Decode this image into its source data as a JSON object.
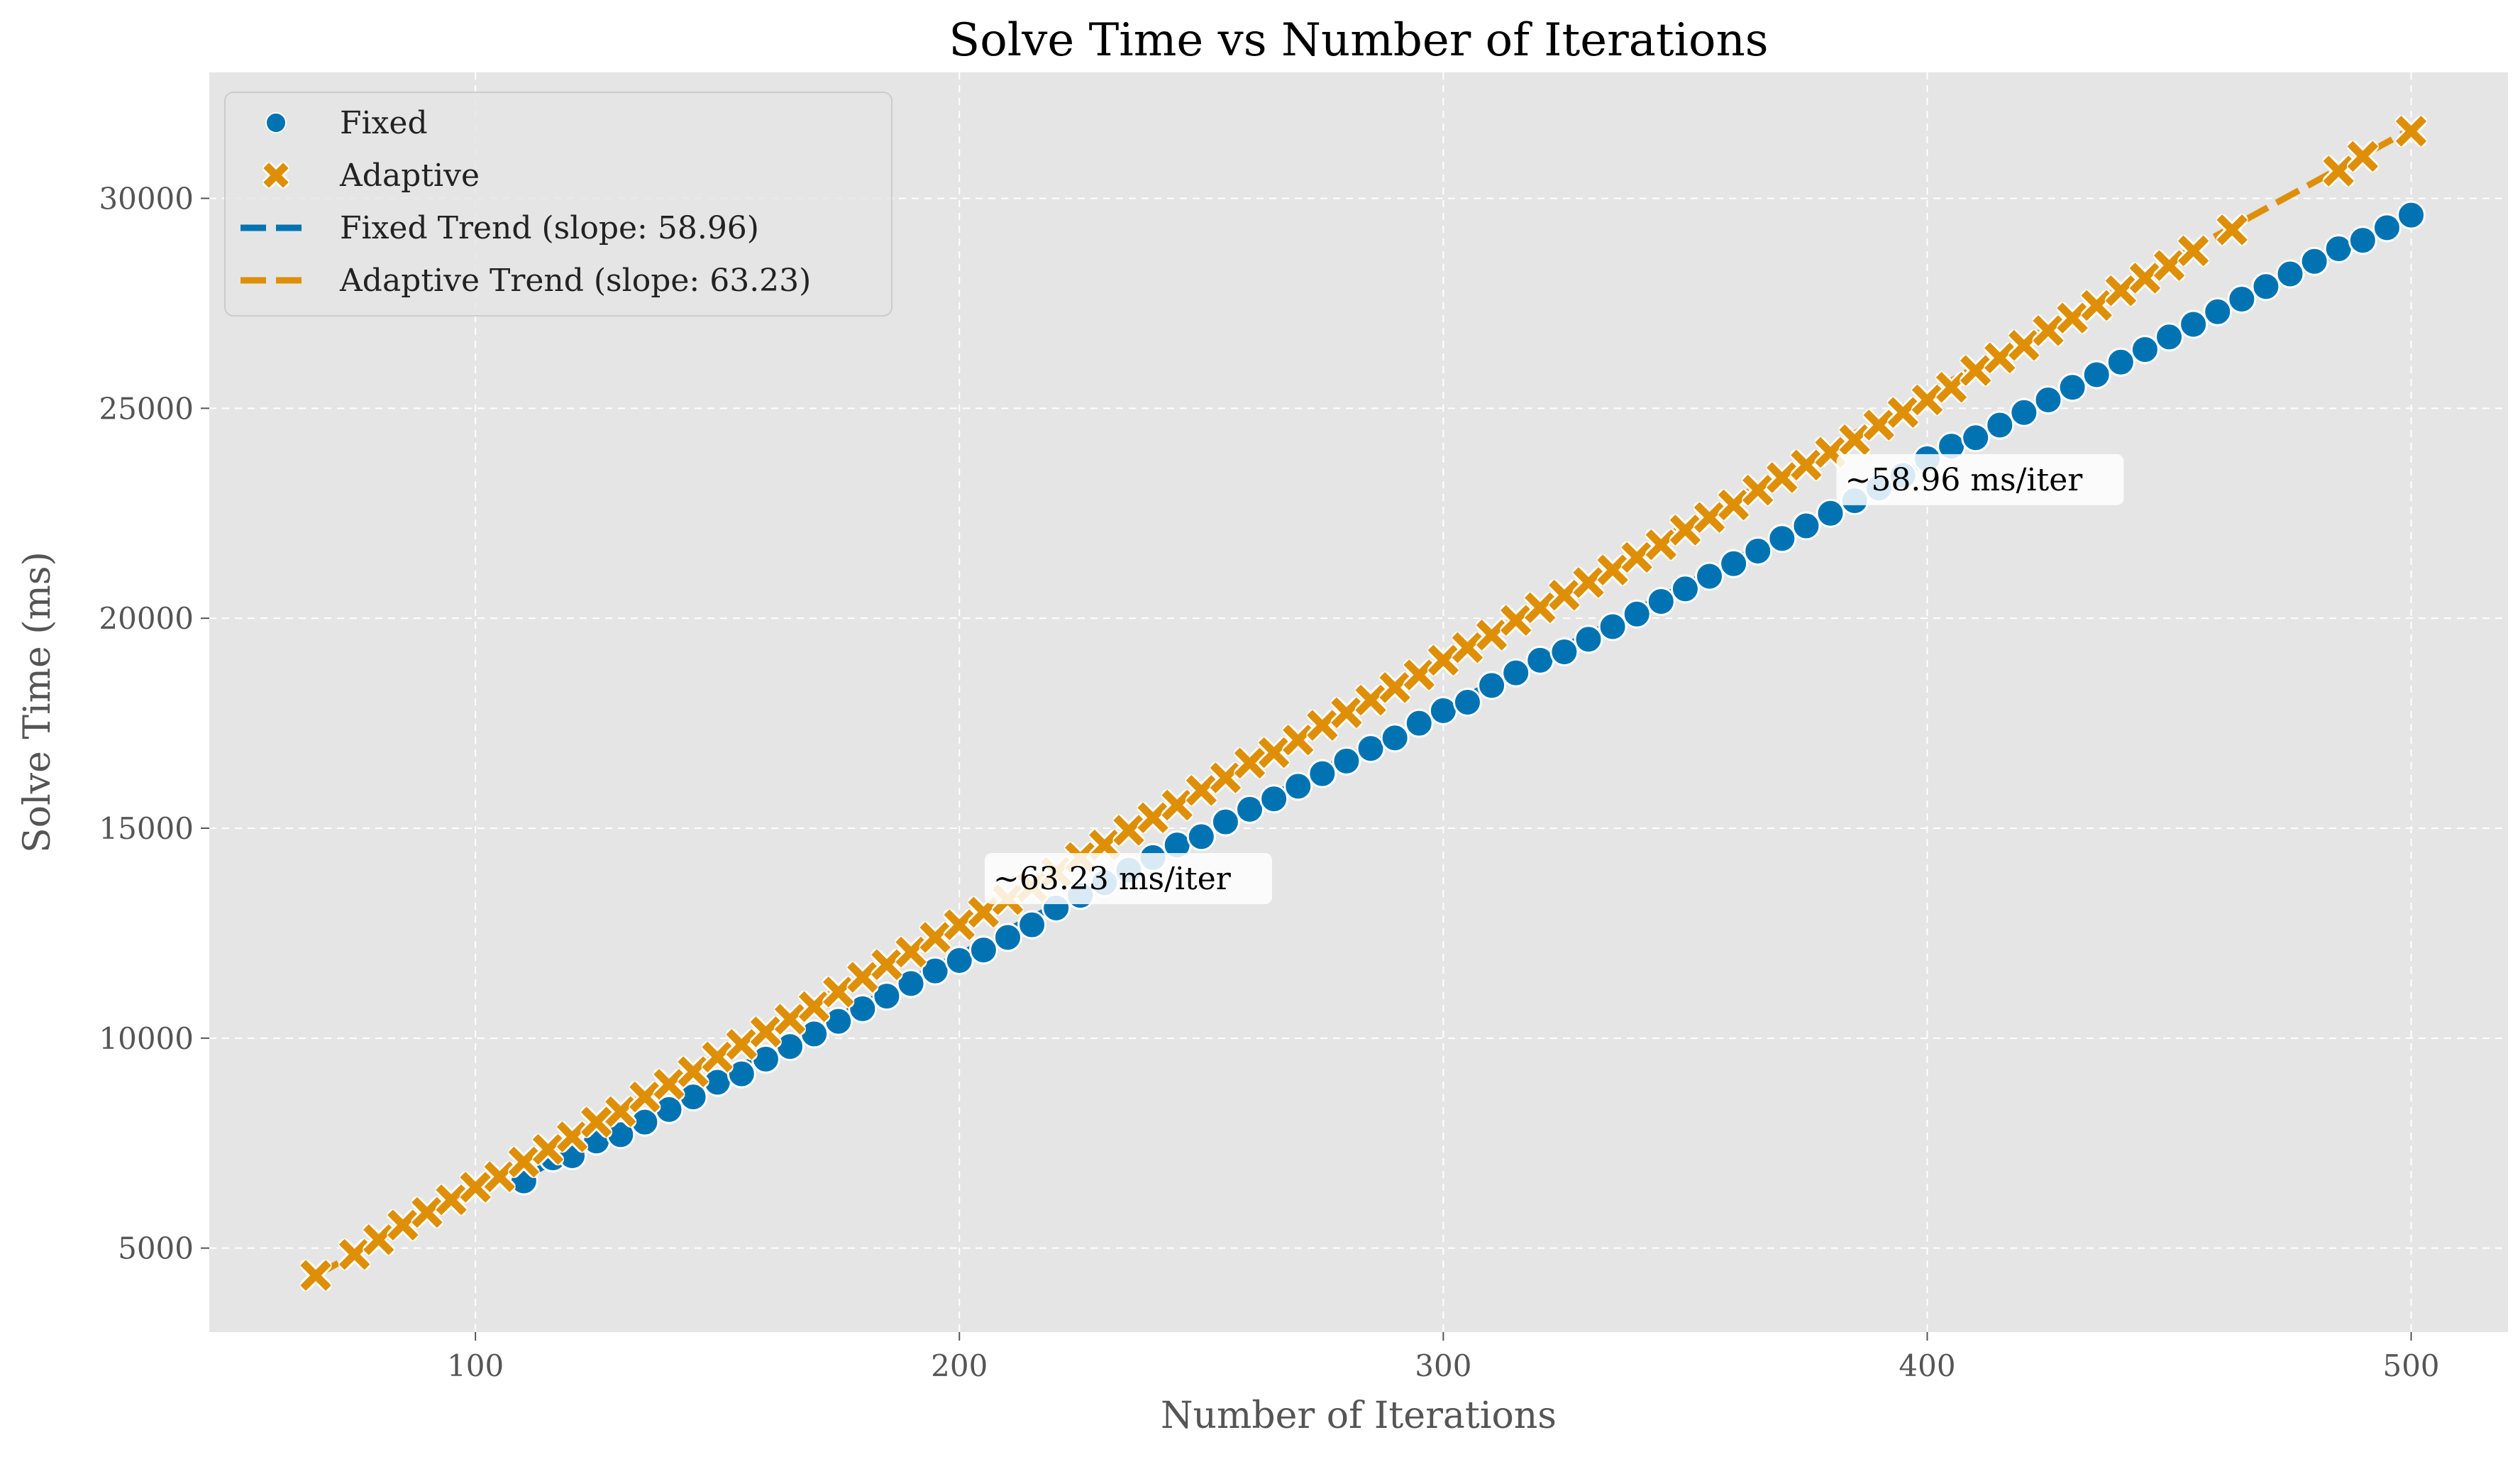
{
  "chart_data": {
    "type": "scatter",
    "title": "Solve Time vs Number of Iterations",
    "xlabel": "Number of Iterations",
    "ylabel": "Solve Time (ms)",
    "xlim": [
      45,
      520
    ],
    "ylim": [
      3000,
      33000
    ],
    "x_ticks": [
      100,
      200,
      300,
      400,
      500
    ],
    "y_ticks": [
      5000,
      10000,
      15000,
      20000,
      25000,
      30000
    ],
    "grid": true,
    "legend_position": "top-left",
    "colors": {
      "fixed": "#0173b2",
      "adaptive": "#de8f05",
      "plot_bg": "#e5e5e5",
      "grid": "#ffffff"
    },
    "series": [
      {
        "name": "Fixed",
        "marker": "circle",
        "x": [
          110,
          116,
          120,
          125,
          130,
          135,
          140,
          145,
          150,
          155,
          160,
          165,
          170,
          175,
          180,
          185,
          190,
          195,
          200,
          205,
          210,
          215,
          220,
          225,
          230,
          235,
          240,
          245,
          250,
          255,
          260,
          265,
          270,
          275,
          280,
          285,
          290,
          295,
          300,
          305,
          310,
          315,
          320,
          325,
          330,
          335,
          340,
          345,
          350,
          355,
          360,
          365,
          370,
          375,
          380,
          385,
          390,
          395,
          400,
          405,
          410,
          415,
          420,
          425,
          430,
          435,
          440,
          445,
          450,
          455,
          460,
          465,
          470,
          475,
          480,
          485,
          490,
          495,
          500
        ],
        "y": [
          6600,
          7150,
          7200,
          7550,
          7700,
          8000,
          8300,
          8600,
          8950,
          9150,
          9500,
          9800,
          10100,
          10400,
          10700,
          11000,
          11300,
          11600,
          11850,
          12100,
          12400,
          12700,
          13100,
          13400,
          13700,
          14000,
          14300,
          14600,
          14800,
          15150,
          15450,
          15700,
          16000,
          16300,
          16600,
          16900,
          17150,
          17500,
          17800,
          18000,
          18400,
          18700,
          19000,
          19200,
          19500,
          19800,
          20100,
          20400,
          20700,
          21000,
          21300,
          21600,
          21900,
          22200,
          22500,
          22800,
          23100,
          23400,
          23800,
          24100,
          24300,
          24600,
          24900,
          25200,
          25500,
          25800,
          26100,
          26400,
          26700,
          27000,
          27300,
          27600,
          27900,
          28200,
          28500,
          28800,
          29000,
          29300,
          29600
        ]
      },
      {
        "name": "Adaptive",
        "marker": "x",
        "x": [
          67,
          75,
          80,
          85,
          90,
          95,
          100,
          105,
          110,
          115,
          120,
          125,
          130,
          135,
          140,
          145,
          150,
          155,
          160,
          165,
          170,
          175,
          180,
          185,
          190,
          195,
          200,
          205,
          210,
          215,
          220,
          225,
          230,
          235,
          240,
          245,
          250,
          255,
          260,
          265,
          270,
          275,
          280,
          285,
          290,
          295,
          300,
          305,
          310,
          315,
          320,
          325,
          330,
          335,
          340,
          345,
          350,
          355,
          360,
          365,
          370,
          375,
          380,
          385,
          390,
          395,
          400,
          405,
          410,
          415,
          420,
          425,
          430,
          435,
          440,
          445,
          450,
          455,
          463,
          485,
          490,
          500
        ],
        "y": [
          4350,
          4850,
          5200,
          5550,
          5850,
          6150,
          6450,
          6700,
          7050,
          7350,
          7650,
          8000,
          8250,
          8600,
          8900,
          9200,
          9550,
          9850,
          10150,
          10450,
          10750,
          11100,
          11450,
          11750,
          12050,
          12400,
          12700,
          13000,
          13300,
          13600,
          13950,
          14300,
          14600,
          14950,
          15250,
          15550,
          15900,
          16200,
          16550,
          16800,
          17100,
          17450,
          17750,
          18050,
          18350,
          18650,
          19000,
          19300,
          19600,
          19950,
          20250,
          20550,
          20850,
          21150,
          21450,
          21750,
          22100,
          22400,
          22700,
          23050,
          23350,
          23650,
          23950,
          24250,
          24600,
          24900,
          25200,
          25500,
          25900,
          26200,
          26500,
          26850,
          27150,
          27450,
          27800,
          28100,
          28400,
          28750,
          29250,
          30650,
          31000,
          31600
        ]
      }
    ],
    "trend_lines": [
      {
        "name": "Fixed Trend (slope: 58.96)",
        "series": "Fixed",
        "x": [
          110,
          500
        ],
        "y": [
          6700,
          29600
        ]
      },
      {
        "name": "Adaptive Trend (slope: 63.23)",
        "series": "Adaptive",
        "x": [
          67,
          500
        ],
        "y": [
          4350,
          31650
        ]
      }
    ],
    "annotations": [
      {
        "text": "~58.96 ms/iter",
        "x": 383,
        "y": 23300,
        "series": "Fixed"
      },
      {
        "text": "~63.23 ms/iter",
        "x": 207,
        "y": 13800,
        "series": "Adaptive"
      }
    ]
  }
}
